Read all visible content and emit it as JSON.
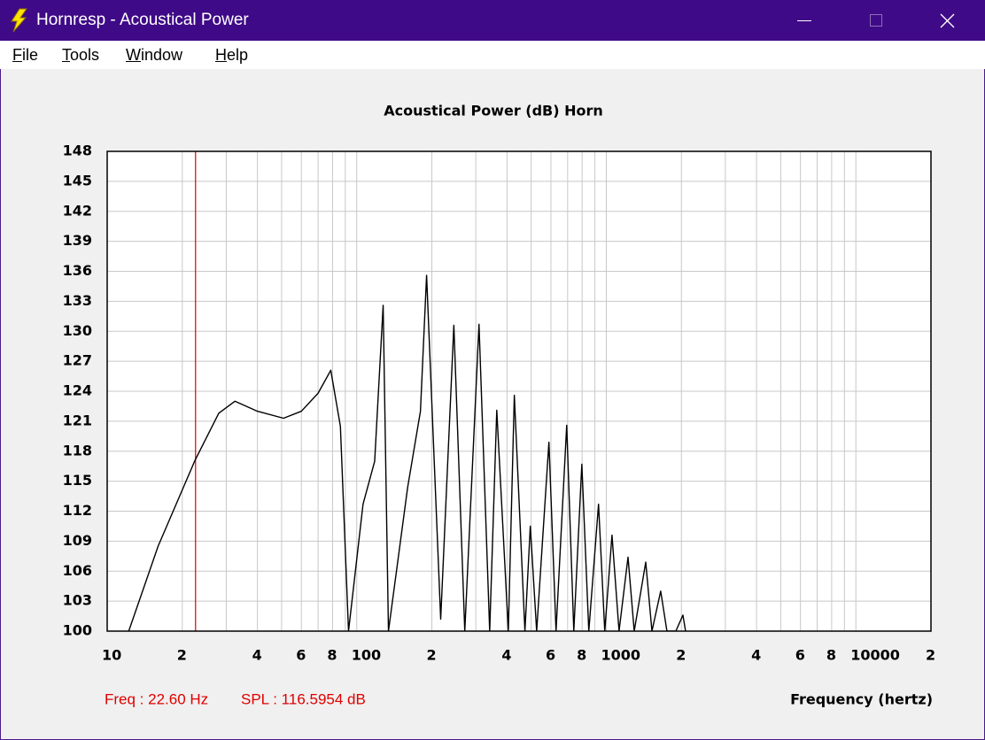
{
  "window": {
    "title": "Hornresp - Acoustical Power"
  },
  "menu": [
    "File",
    "Tools",
    "Window",
    "Help"
  ],
  "chart_data": {
    "type": "line",
    "title": "Acoustical Power (dB)   Horn",
    "x_label": "Frequency (hertz)",
    "x_scale": "log",
    "grid": true,
    "color": "#000000",
    "xlim": [
      10,
      20000
    ],
    "ylim": [
      100,
      148
    ],
    "xticks": [
      {
        "value": 10,
        "label": "10"
      },
      {
        "value": 20,
        "label": "2"
      },
      {
        "value": 40,
        "label": "4"
      },
      {
        "value": 60,
        "label": "6"
      },
      {
        "value": 80,
        "label": "8"
      },
      {
        "value": 100,
        "label": "100"
      },
      {
        "value": 200,
        "label": "2"
      },
      {
        "value": 400,
        "label": "4"
      },
      {
        "value": 600,
        "label": "6"
      },
      {
        "value": 800,
        "label": "8"
      },
      {
        "value": 1000,
        "label": "1000"
      },
      {
        "value": 2000,
        "label": "2"
      },
      {
        "value": 4000,
        "label": "4"
      },
      {
        "value": 6000,
        "label": "6"
      },
      {
        "value": 8000,
        "label": "8"
      },
      {
        "value": 10000,
        "label": "10000"
      },
      {
        "value": 20000,
        "label": "2"
      }
    ],
    "x_minor_grid": [
      30,
      50,
      70,
      90,
      300,
      500,
      700,
      900,
      3000,
      5000,
      7000,
      9000
    ],
    "yticks": [
      100,
      103,
      106,
      109,
      112,
      115,
      118,
      121,
      124,
      127,
      130,
      133,
      136,
      139,
      142,
      145,
      148
    ],
    "x": [
      12.2,
      16,
      22.5,
      28,
      32.5,
      40,
      50.9,
      60,
      70,
      78.7,
      86,
      92.7,
      106,
      118,
      127.6,
      134,
      160,
      180,
      190.5,
      217,
      245,
      271,
      309,
      341,
      364,
      405,
      428,
      472,
      496,
      526,
      589,
      629,
      694,
      741,
      798,
      851,
      931,
      986,
      1054,
      1125,
      1222,
      1294,
      1439,
      1524,
      1652,
      1750,
      1900,
      2028,
      2078
    ],
    "values": [
      100,
      108.5,
      117.1,
      121.8,
      123.0,
      122.0,
      121.3,
      122.0,
      123.8,
      126.1,
      120.5,
      100,
      112.7,
      117,
      132.6,
      100,
      114.4,
      122,
      135.6,
      101.2,
      130.6,
      100,
      130.7,
      100,
      122.1,
      100,
      123.6,
      100,
      110.5,
      100,
      118.9,
      100,
      120.6,
      100,
      116.7,
      100,
      112.7,
      100,
      109.6,
      100,
      107.4,
      100,
      106.9,
      100,
      104,
      100,
      100,
      101.6,
      100
    ],
    "cursor_x": 22.6,
    "cursor_color": "#e00000",
    "cursor_freq_label": "Freq : 22.60 Hz",
    "cursor_spl_label": "SPL : 116.5954 dB"
  }
}
